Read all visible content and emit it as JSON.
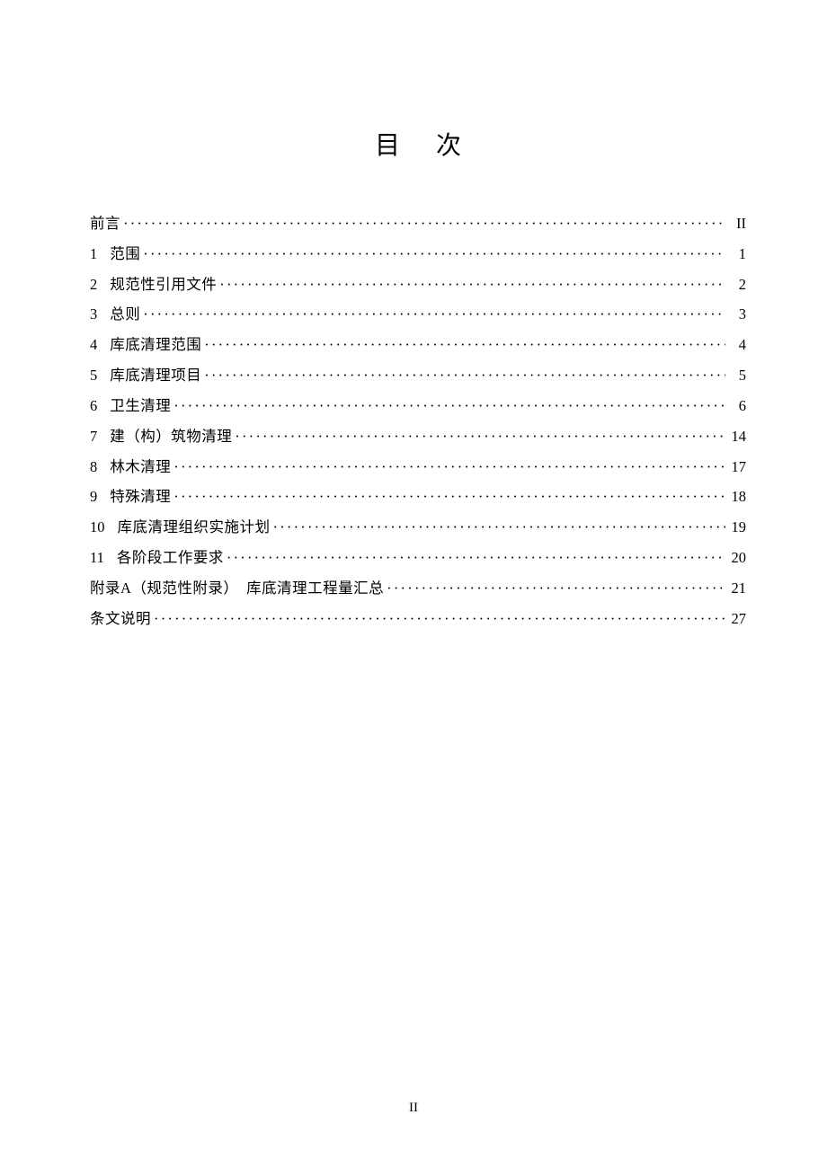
{
  "title": "目次",
  "title_char1": "目",
  "title_char2": "次",
  "footer": "II",
  "toc": [
    {
      "num": "",
      "text": "前言",
      "page": "II"
    },
    {
      "num": "1",
      "text": "范围",
      "page": "1"
    },
    {
      "num": "2",
      "text": "规范性引用文件",
      "page": "2"
    },
    {
      "num": "3",
      "text": "总则",
      "page": "3"
    },
    {
      "num": "4",
      "text": "库底清理范围",
      "page": "4"
    },
    {
      "num": "5",
      "text": "库底清理项目",
      "page": "5"
    },
    {
      "num": "6",
      "text": "卫生清理",
      "page": "6"
    },
    {
      "num": "7",
      "text": "建（构）筑物清理",
      "page": "14"
    },
    {
      "num": "8",
      "text": "林木清理",
      "page": "17"
    },
    {
      "num": "9",
      "text": "特殊清理",
      "page": "18"
    },
    {
      "num": "10",
      "text": "库底清理组织实施计划",
      "page": "19"
    },
    {
      "num": "11",
      "text": "各阶段工作要求",
      "page": "20"
    },
    {
      "num": "",
      "text": "附录A（规范性附录）　库底清理工程量汇总",
      "page": "21"
    },
    {
      "num": "",
      "text": "条文说明",
      "page": "27"
    }
  ]
}
